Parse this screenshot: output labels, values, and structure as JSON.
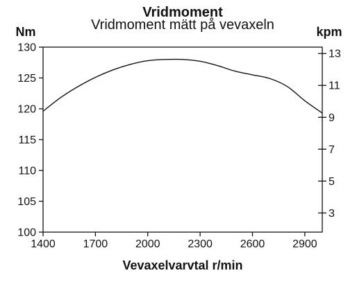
{
  "chart_data": {
    "type": "line",
    "title": "Vridmoment",
    "subtitle": "Vridmoment mätt på vevaxeln",
    "xlabel": "Vevaxelvarvtal r/min",
    "ylabel_left": "Nm",
    "ylabel_right": "kpm",
    "xlim": [
      1400,
      3000
    ],
    "ylim": [
      100,
      130
    ],
    "ylim_right": [
      1.8,
      13.4
    ],
    "grid": false,
    "x_ticks": [
      1400,
      1700,
      2000,
      2300,
      2600,
      2900
    ],
    "y_ticks": [
      100,
      105,
      110,
      115,
      120,
      125,
      130
    ],
    "y_right_ticks": [
      3,
      5,
      7,
      9,
      11,
      13
    ],
    "x_tick_labels": [
      "1400",
      "1700",
      "2000",
      "2300",
      "2600",
      "2900"
    ],
    "y_tick_labels": [
      "100",
      "105",
      "110",
      "115",
      "120",
      "125",
      "130"
    ],
    "y_right_tick_labels": [
      "3",
      "5",
      "7",
      "9",
      "11",
      "13"
    ],
    "series": [
      {
        "x": [
          1400,
          1500,
          1600,
          1700,
          1800,
          1900,
          2000,
          2100,
          2200,
          2300,
          2400,
          2500,
          2600,
          2700,
          2800,
          2900,
          3000
        ],
        "y": [
          119.6,
          121.8,
          123.6,
          125.1,
          126.3,
          127.2,
          127.8,
          128.0,
          128.0,
          127.7,
          127.0,
          126.1,
          125.5,
          124.9,
          123.6,
          121.3,
          119.3
        ]
      }
    ]
  }
}
